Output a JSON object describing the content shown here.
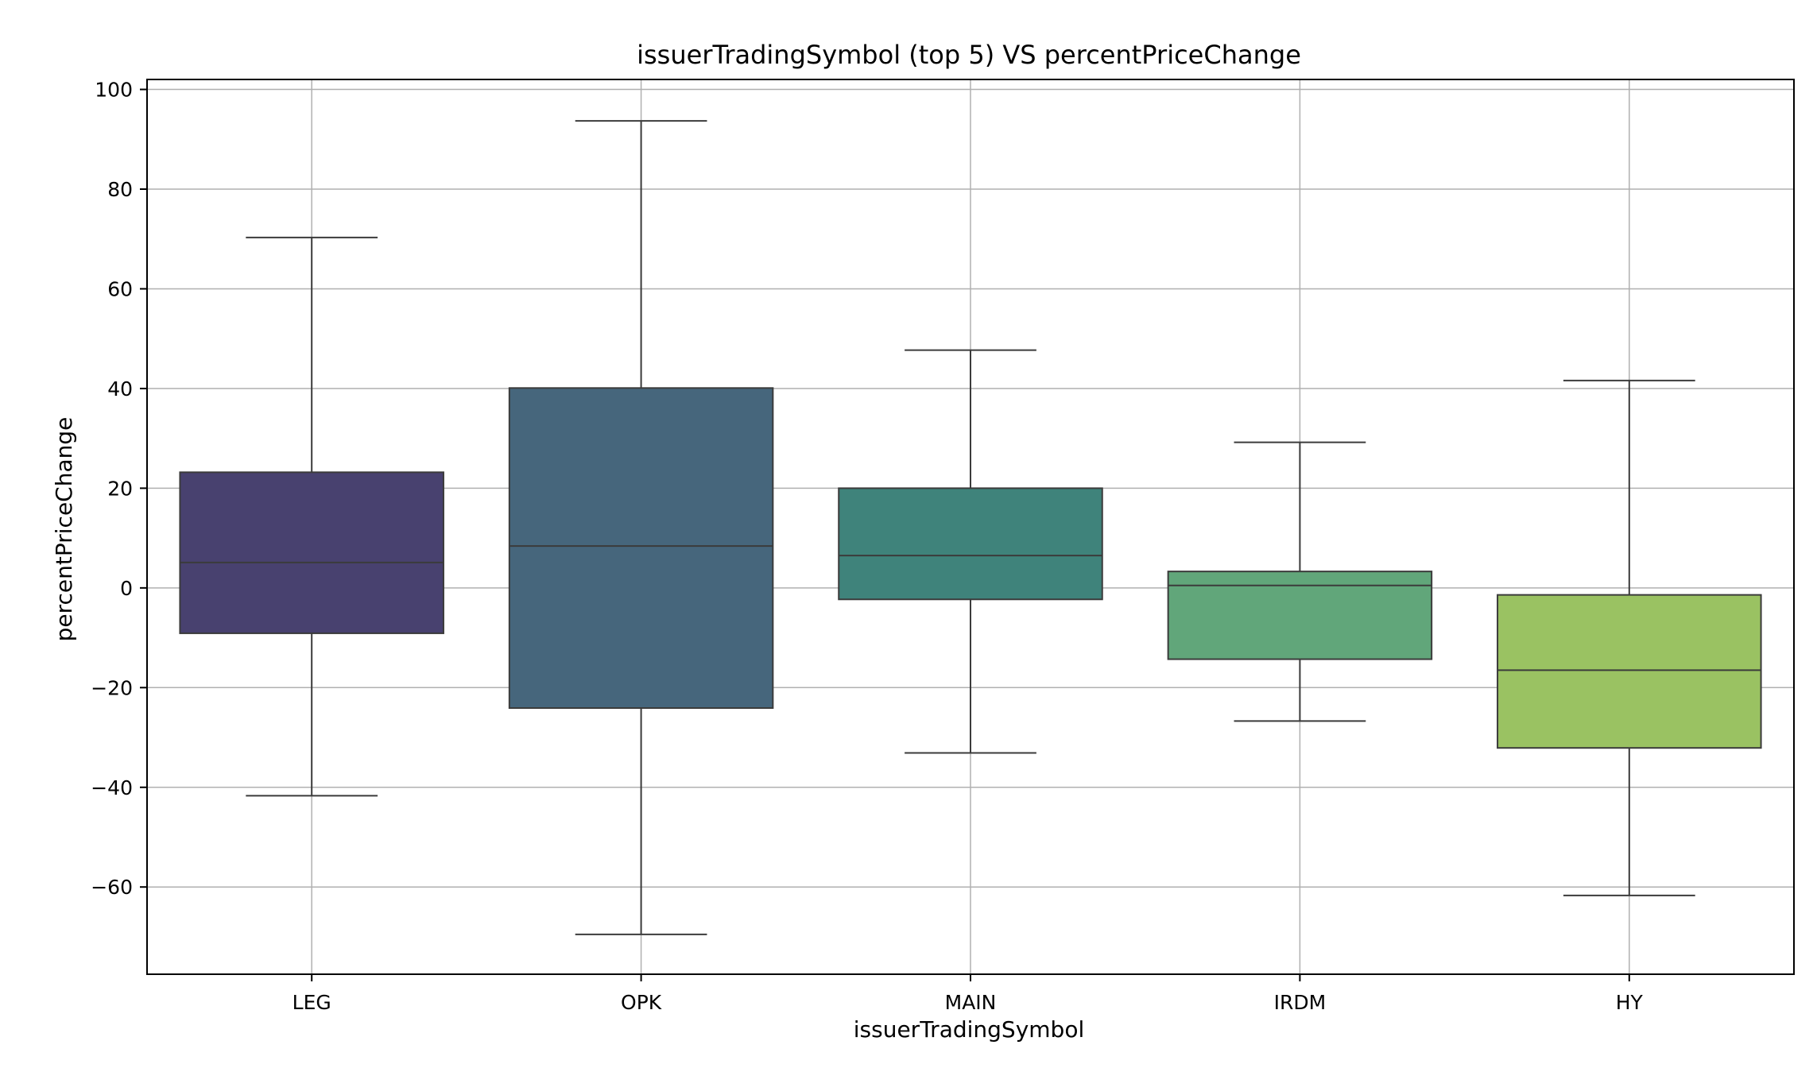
{
  "chart_data": {
    "type": "box",
    "title": "issuerTradingSymbol (top 5) VS percentPriceChange",
    "xlabel": "issuerTradingSymbol",
    "ylabel": "percentPriceChange",
    "ylim": [
      -77.5,
      102
    ],
    "yticks": [
      100,
      80,
      60,
      40,
      20,
      0,
      -20,
      -40,
      -60
    ],
    "ytick_labels": [
      "100",
      "80",
      "60",
      "40",
      "20",
      "0",
      "−20",
      "−40",
      "−60"
    ],
    "grid": true,
    "categories": [
      "LEG",
      "OPK",
      "MAIN",
      "IRDM",
      "HY"
    ],
    "boxes": [
      {
        "category": "LEG",
        "whisker_low": -41.7,
        "q1": -9.1,
        "median": 5.1,
        "q3": 23.2,
        "whisker_high": 70.3,
        "color": "#48416f"
      },
      {
        "category": "OPK",
        "whisker_low": -69.5,
        "q1": -24.1,
        "median": 8.4,
        "q3": 40.1,
        "whisker_high": 93.7,
        "color": "#46667c"
      },
      {
        "category": "MAIN",
        "whisker_low": -33.1,
        "q1": -2.3,
        "median": 6.5,
        "q3": 20.0,
        "whisker_high": 47.7,
        "color": "#3f837b"
      },
      {
        "category": "IRDM",
        "whisker_low": -26.7,
        "q1": -14.3,
        "median": 0.5,
        "q3": 3.3,
        "whisker_high": 29.2,
        "color": "#61a67a"
      },
      {
        "category": "HY",
        "whisker_low": -61.7,
        "q1": -32.1,
        "median": -16.5,
        "q3": -1.4,
        "whisker_high": 41.6,
        "color": "#9ac262"
      }
    ]
  }
}
